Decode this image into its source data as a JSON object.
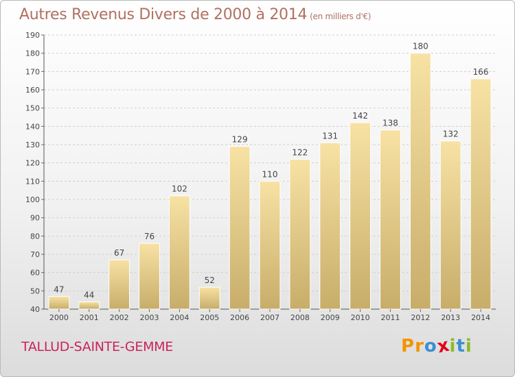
{
  "header": {
    "title": "Autres Revenus Divers de 2000 à 2014",
    "unit_note": "(en milliers d'€)"
  },
  "footer": {
    "commune": "TALLUD-SAINTE-GEMME",
    "logo_letters": [
      "P",
      "r",
      "o",
      "x",
      "i",
      "t",
      "i"
    ]
  },
  "colors": {
    "bar_top": "#f7e2a4",
    "bar_bottom": "#c8ad6a",
    "bar_edge": "#ffffff",
    "logo": [
      "#f29400",
      "#f29400",
      "#3a8fd3",
      "#e2001a",
      "#8cbb26",
      "#3a8fd3",
      "#8cbb26"
    ]
  },
  "chart_data": {
    "type": "bar",
    "title": "Autres Revenus Divers de 2000 à 2014",
    "subtitle": "(en milliers d'€)",
    "categories": [
      "2000",
      "2001",
      "2002",
      "2003",
      "2004",
      "2005",
      "2006",
      "2007",
      "2008",
      "2009",
      "2010",
      "2011",
      "2012",
      "2013",
      "2014"
    ],
    "values": [
      47,
      44,
      67,
      76,
      102,
      52,
      129,
      110,
      122,
      131,
      142,
      138,
      180,
      132,
      166
    ],
    "ylim": [
      40,
      190
    ],
    "yticks": [
      40,
      50,
      60,
      70,
      80,
      90,
      100,
      110,
      120,
      130,
      140,
      150,
      160,
      170,
      180,
      190
    ],
    "grid": true,
    "xlabel": "",
    "ylabel": ""
  }
}
